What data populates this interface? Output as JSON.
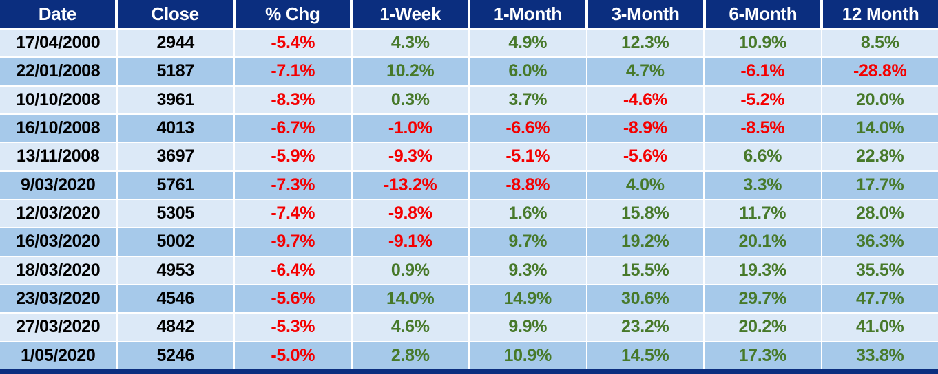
{
  "colors": {
    "header_bg": "#0B2E7F",
    "header_text": "#FFFFFF",
    "row_light": "#DCE9F7",
    "row_dark": "#A6C9EA",
    "negative_text": "#F40000",
    "positive_text": "#47792A",
    "plain_text": "#000000"
  },
  "chart_data": {
    "type": "table",
    "columns": [
      "Date",
      "Close",
      "% Chg",
      "1-Week",
      "1-Month",
      "3-Month",
      "6-Month",
      "12 Month"
    ],
    "rows": [
      [
        "17/04/2000",
        "2944",
        "-5.4%",
        "4.3%",
        "4.9%",
        "12.3%",
        "10.9%",
        "8.5%"
      ],
      [
        "22/01/2008",
        "5187",
        "-7.1%",
        "10.2%",
        "6.0%",
        "4.7%",
        "-6.1%",
        "-28.8%"
      ],
      [
        "10/10/2008",
        "3961",
        "-8.3%",
        "0.3%",
        "3.7%",
        "-4.6%",
        "-5.2%",
        "20.0%"
      ],
      [
        "16/10/2008",
        "4013",
        "-6.7%",
        "-1.0%",
        "-6.6%",
        "-8.9%",
        "-8.5%",
        "14.0%"
      ],
      [
        "13/11/2008",
        "3697",
        "-5.9%",
        "-9.3%",
        "-5.1%",
        "-5.6%",
        "6.6%",
        "22.8%"
      ],
      [
        "9/03/2020",
        "5761",
        "-7.3%",
        "-13.2%",
        "-8.8%",
        "4.0%",
        "3.3%",
        "17.7%"
      ],
      [
        "12/03/2020",
        "5305",
        "-7.4%",
        "-9.8%",
        "1.6%",
        "15.8%",
        "11.7%",
        "28.0%"
      ],
      [
        "16/03/2020",
        "5002",
        "-9.7%",
        "-9.1%",
        "9.7%",
        "19.2%",
        "20.1%",
        "36.3%"
      ],
      [
        "18/03/2020",
        "4953",
        "-6.4%",
        "0.9%",
        "9.3%",
        "15.5%",
        "19.3%",
        "35.5%"
      ],
      [
        "23/03/2020",
        "4546",
        "-5.6%",
        "14.0%",
        "14.9%",
        "30.6%",
        "29.7%",
        "47.7%"
      ],
      [
        "27/03/2020",
        "4842",
        "-5.3%",
        "4.6%",
        "9.9%",
        "23.2%",
        "20.2%",
        "41.0%"
      ],
      [
        "1/05/2020",
        "5246",
        "-5.0%",
        "2.8%",
        "10.9%",
        "14.5%",
        "17.3%",
        "33.8%"
      ]
    ]
  }
}
